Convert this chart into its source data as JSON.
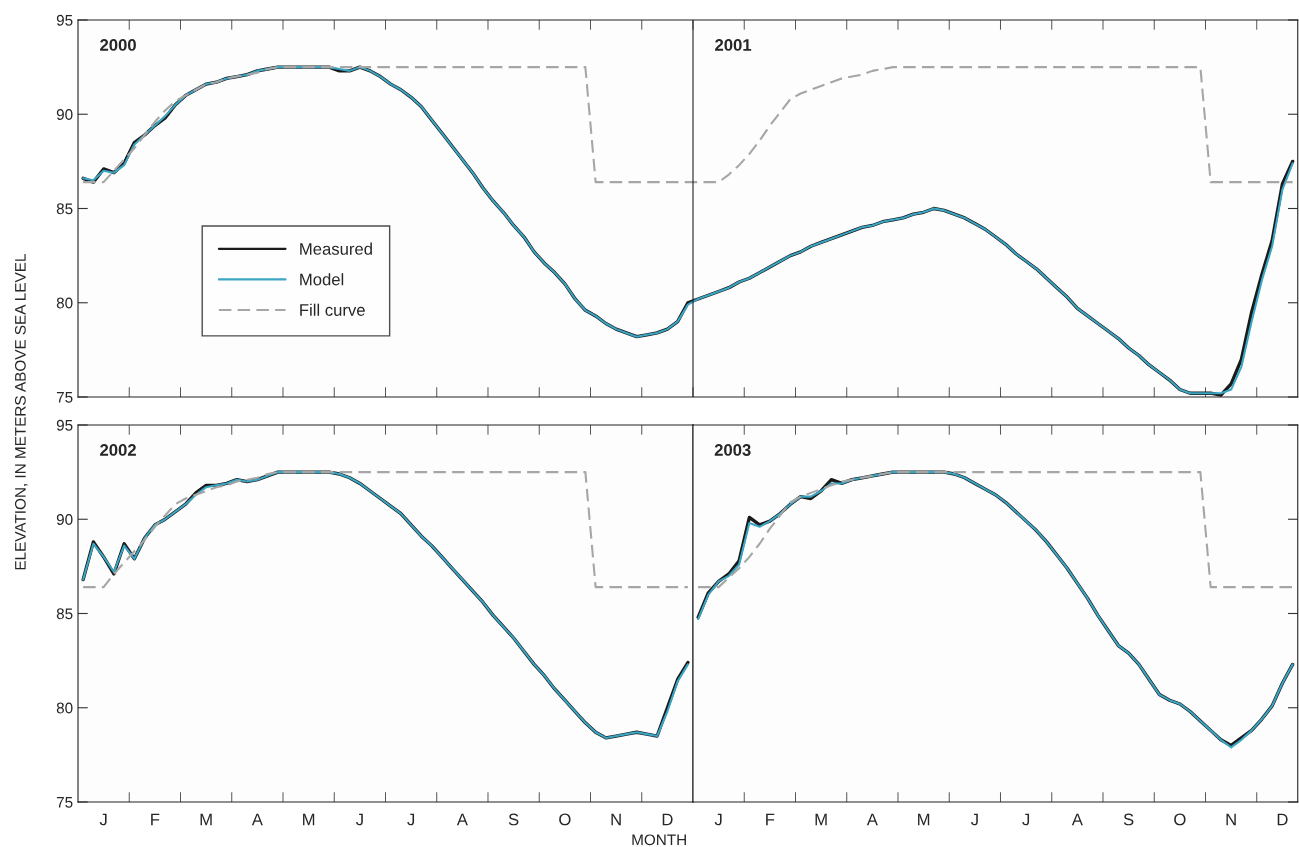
{
  "chart_data": [
    {
      "type": "line",
      "ylabel": "ELEVATION, IN METERS ABOVE SEA LEVEL",
      "annotations": [
        "2000",
        "2001"
      ],
      "categories": [
        null,
        null,
        null,
        null,
        null,
        null,
        null,
        null,
        null,
        null,
        null,
        null,
        null,
        null,
        null,
        null,
        null,
        null,
        null,
        null,
        null,
        null,
        null,
        null,
        null,
        null,
        null,
        null,
        null,
        null,
        null,
        null,
        null,
        null,
        null,
        null,
        null,
        null,
        null,
        null,
        null,
        null,
        null,
        null,
        null,
        null,
        null,
        null,
        null,
        null,
        null,
        null,
        null,
        null,
        null,
        null,
        null,
        null,
        null,
        null,
        null,
        null,
        null,
        null,
        null,
        null,
        null,
        null,
        null,
        null,
        null,
        null,
        null,
        null,
        null,
        null,
        null,
        null,
        null,
        null,
        null,
        null,
        null,
        null,
        null,
        null,
        null,
        null,
        null,
        null,
        null,
        null,
        null,
        null,
        null,
        null,
        null,
        null,
        null,
        null,
        null,
        null,
        null,
        null,
        null,
        null,
        null,
        null,
        null,
        null,
        null,
        null,
        null,
        null,
        null,
        null,
        null,
        null,
        null
      ],
      "ylim": [
        75,
        95
      ],
      "yticks": [
        75,
        80,
        85,
        90,
        95
      ],
      "tick_labels": "y",
      "grid": false,
      "legend": "lower left",
      "series": [
        {
          "name": "Measured",
          "color": "#1a1a1a",
          "values": [
            86.6,
            86.4,
            87.1,
            86.9,
            87.4,
            88.5,
            88.9,
            89.4,
            89.8,
            90.5,
            91.0,
            91.3,
            91.6,
            91.7,
            91.9,
            92.0,
            92.1,
            92.3,
            92.4,
            92.5,
            92.5,
            92.5,
            92.5,
            92.5,
            92.5,
            92.3,
            92.3,
            92.5,
            92.3,
            92.0,
            91.6,
            91.3,
            90.9,
            90.4,
            89.7,
            89.0,
            88.3,
            87.6,
            86.9,
            86.1,
            85.4,
            84.8,
            84.1,
            83.5,
            82.7,
            82.1,
            81.6,
            81.0,
            80.2,
            79.6,
            79.3,
            78.9,
            78.6,
            78.4,
            78.2,
            78.3,
            78.4,
            78.6,
            79.0,
            80.0,
            80.2,
            80.4,
            80.6,
            80.8,
            81.1,
            81.3,
            81.6,
            81.9,
            82.2,
            82.5,
            82.7,
            83.0,
            83.2,
            83.4,
            83.6,
            83.8,
            84.0,
            84.1,
            84.3,
            84.4,
            84.5,
            84.7,
            84.8,
            85.0,
            84.9,
            84.7,
            84.5,
            84.2,
            83.9,
            83.5,
            83.1,
            82.6,
            82.2,
            81.8,
            81.3,
            80.8,
            80.3,
            79.7,
            79.3,
            78.9,
            78.5,
            78.1,
            77.6,
            77.2,
            76.7,
            76.3,
            75.9,
            75.4,
            75.2,
            75.2,
            75.2,
            75.1,
            75.7,
            77.0,
            79.5,
            81.5,
            83.3,
            86.3,
            87.5
          ]
        },
        {
          "name": "Model",
          "color": "#3aa6c4",
          "values": [
            86.6,
            86.5,
            87.0,
            86.9,
            87.3,
            88.4,
            88.9,
            89.4,
            89.9,
            90.5,
            91.0,
            91.3,
            91.6,
            91.7,
            91.9,
            92.0,
            92.1,
            92.3,
            92.4,
            92.5,
            92.5,
            92.5,
            92.5,
            92.5,
            92.5,
            92.4,
            92.3,
            92.5,
            92.3,
            92.0,
            91.6,
            91.3,
            90.9,
            90.4,
            89.7,
            89.0,
            88.3,
            87.6,
            86.9,
            86.1,
            85.4,
            84.8,
            84.1,
            83.5,
            82.7,
            82.1,
            81.6,
            81.0,
            80.2,
            79.6,
            79.3,
            78.9,
            78.6,
            78.4,
            78.2,
            78.3,
            78.4,
            78.6,
            79.0,
            79.9,
            80.2,
            80.4,
            80.6,
            80.8,
            81.1,
            81.3,
            81.6,
            81.9,
            82.2,
            82.5,
            82.7,
            83.0,
            83.2,
            83.4,
            83.6,
            83.8,
            84.0,
            84.1,
            84.3,
            84.4,
            84.5,
            84.7,
            84.8,
            85.0,
            84.9,
            84.7,
            84.5,
            84.2,
            83.9,
            83.5,
            83.1,
            82.6,
            82.2,
            81.8,
            81.3,
            80.8,
            80.3,
            79.7,
            79.3,
            78.9,
            78.5,
            78.1,
            77.6,
            77.2,
            76.7,
            76.3,
            75.9,
            75.4,
            75.2,
            75.2,
            75.2,
            75.2,
            75.4,
            76.6,
            79.0,
            81.2,
            83.0,
            86.0,
            87.4
          ]
        },
        {
          "name": "Fill curve",
          "color": "#a6a6a6",
          "line_style": "dashed",
          "values": [
            86.4,
            86.4,
            86.4,
            87.0,
            87.6,
            88.2,
            88.9,
            89.6,
            90.2,
            90.7,
            91.0,
            91.3,
            91.6,
            91.7,
            91.9,
            92.0,
            92.1,
            92.2,
            92.4,
            92.5,
            92.5,
            92.5,
            92.5,
            92.5,
            92.5,
            92.5,
            92.5,
            92.5,
            92.5,
            92.5,
            92.5,
            92.5,
            92.5,
            92.5,
            92.5,
            92.5,
            92.5,
            92.5,
            92.5,
            92.5,
            92.5,
            92.5,
            92.5,
            92.5,
            92.5,
            92.5,
            92.5,
            92.5,
            92.5,
            92.5,
            86.4,
            86.4,
            86.4,
            86.4,
            86.4,
            86.4,
            86.4,
            86.4,
            86.4,
            86.4,
            86.4,
            86.4,
            86.4,
            86.8,
            87.3,
            87.9,
            88.6,
            89.4,
            90.1,
            90.8,
            91.1,
            91.3,
            91.5,
            91.7,
            91.9,
            92.0,
            92.1,
            92.3,
            92.4,
            92.5,
            92.5,
            92.5,
            92.5,
            92.5,
            92.5,
            92.5,
            92.5,
            92.5,
            92.5,
            92.5,
            92.5,
            92.5,
            92.5,
            92.5,
            92.5,
            92.5,
            92.5,
            92.5,
            92.5,
            92.5,
            92.5,
            92.5,
            92.5,
            92.5,
            92.5,
            92.5,
            92.5,
            92.5,
            92.5,
            92.5,
            86.4,
            86.4,
            86.4,
            86.4,
            86.4,
            86.4,
            86.4,
            86.4,
            86.4
          ]
        }
      ]
    },
    {
      "type": "line",
      "xlabel": "MONTH",
      "annotations": [
        "2002"
      ],
      "categories": [
        null,
        null,
        "J",
        null,
        null,
        null,
        null,
        "F",
        null,
        null,
        null,
        null,
        "M",
        null,
        null,
        null,
        null,
        "A",
        null,
        null,
        null,
        null,
        "M",
        null,
        null,
        null,
        null,
        "J",
        null,
        null,
        null,
        null,
        "J",
        null,
        null,
        null,
        null,
        "A",
        null,
        null,
        null,
        null,
        "S",
        null,
        null,
        null,
        null,
        "O",
        null,
        null,
        null,
        null,
        "N",
        null,
        null,
        null,
        null,
        "D",
        null,
        null
      ],
      "ylim": [
        75,
        95
      ],
      "yticks": [
        75,
        80,
        85,
        90,
        95
      ],
      "grid": false,
      "series": [
        {
          "color": "#1a1a1a",
          "values": [
            86.8,
            88.8,
            88.0,
            87.1,
            88.7,
            87.9,
            89.0,
            89.7,
            90.0,
            90.4,
            90.8,
            91.4,
            91.8,
            91.8,
            91.9,
            92.1,
            92.0,
            92.1,
            92.3,
            92.5,
            92.5,
            92.5,
            92.5,
            92.5,
            92.5,
            92.4,
            92.2,
            91.9,
            91.5,
            91.1,
            90.7,
            90.3,
            89.7,
            89.1,
            88.6,
            88.0,
            87.4,
            86.8,
            86.2,
            85.6,
            84.9,
            84.3,
            83.7,
            83.0,
            82.3,
            81.7,
            81.0,
            80.4,
            79.8,
            79.2,
            78.7,
            78.4,
            78.5,
            78.6,
            78.7,
            78.6,
            78.5,
            80.0,
            81.5,
            82.4
          ]
        },
        {
          "color": "#3aa6c4",
          "values": [
            86.8,
            88.7,
            88.0,
            87.2,
            88.6,
            87.9,
            89.0,
            89.7,
            90.0,
            90.4,
            90.8,
            91.3,
            91.7,
            91.8,
            91.9,
            92.1,
            92.0,
            92.1,
            92.3,
            92.5,
            92.5,
            92.5,
            92.5,
            92.5,
            92.5,
            92.4,
            92.2,
            91.9,
            91.5,
            91.1,
            90.7,
            90.3,
            89.7,
            89.1,
            88.6,
            88.0,
            87.4,
            86.8,
            86.2,
            85.6,
            84.9,
            84.3,
            83.7,
            83.0,
            82.3,
            81.7,
            81.0,
            80.4,
            79.8,
            79.2,
            78.7,
            78.4,
            78.5,
            78.6,
            78.7,
            78.6,
            78.5,
            79.8,
            81.4,
            82.3
          ]
        },
        {
          "color": "#a6a6a6",
          "line_style": "dashed",
          "values": [
            86.4,
            86.4,
            86.4,
            87.1,
            87.7,
            88.3,
            88.9,
            89.6,
            90.2,
            90.8,
            91.1,
            91.3,
            91.5,
            91.7,
            91.8,
            92.0,
            92.1,
            92.2,
            92.4,
            92.5,
            92.5,
            92.5,
            92.5,
            92.5,
            92.5,
            92.5,
            92.5,
            92.5,
            92.5,
            92.5,
            92.5,
            92.5,
            92.5,
            92.5,
            92.5,
            92.5,
            92.5,
            92.5,
            92.5,
            92.5,
            92.5,
            92.5,
            92.5,
            92.5,
            92.5,
            92.5,
            92.5,
            92.5,
            92.5,
            92.5,
            86.4,
            86.4,
            86.4,
            86.4,
            86.4,
            86.4,
            86.4,
            86.4,
            86.4,
            86.4
          ]
        }
      ]
    },
    {
      "type": "line",
      "annotations": [
        "2003"
      ],
      "categories": [
        null,
        null,
        "J",
        null,
        null,
        null,
        null,
        "F",
        null,
        null,
        null,
        null,
        "M",
        null,
        null,
        null,
        null,
        "A",
        null,
        null,
        null,
        null,
        "M",
        null,
        null,
        null,
        null,
        "J",
        null,
        null,
        null,
        null,
        "J",
        null,
        null,
        null,
        null,
        "A",
        null,
        null,
        null,
        null,
        "S",
        null,
        null,
        null,
        null,
        "O",
        null,
        null,
        null,
        null,
        "N",
        null,
        null,
        null,
        null,
        "D",
        null
      ],
      "ylim": [
        75,
        95
      ],
      "yticks": [
        75,
        80,
        85,
        90,
        95
      ],
      "tick_labels": "x",
      "grid": false,
      "series": [
        {
          "color": "#1a1a1a",
          "values": [
            84.8,
            86.1,
            86.7,
            87.1,
            87.8,
            90.1,
            89.7,
            89.9,
            90.3,
            90.8,
            91.2,
            91.1,
            91.5,
            92.1,
            91.9,
            92.1,
            92.2,
            92.3,
            92.4,
            92.5,
            92.5,
            92.5,
            92.5,
            92.5,
            92.5,
            92.4,
            92.2,
            91.9,
            91.6,
            91.3,
            90.9,
            90.4,
            89.9,
            89.4,
            88.8,
            88.1,
            87.4,
            86.6,
            85.8,
            84.9,
            84.1,
            83.3,
            82.9,
            82.3,
            81.5,
            80.7,
            80.4,
            80.2,
            79.8,
            79.3,
            78.8,
            78.3,
            78.0,
            78.4,
            78.8,
            79.4,
            80.1,
            81.3,
            82.3
          ]
        },
        {
          "color": "#3aa6c4",
          "values": [
            84.7,
            86.0,
            86.7,
            87.0,
            87.6,
            89.8,
            89.6,
            89.9,
            90.3,
            90.8,
            91.2,
            91.2,
            91.5,
            91.9,
            91.9,
            92.1,
            92.2,
            92.3,
            92.4,
            92.5,
            92.5,
            92.5,
            92.5,
            92.5,
            92.5,
            92.4,
            92.2,
            91.9,
            91.6,
            91.3,
            90.9,
            90.4,
            89.9,
            89.4,
            88.8,
            88.1,
            87.4,
            86.6,
            85.8,
            84.9,
            84.1,
            83.3,
            82.9,
            82.3,
            81.5,
            80.7,
            80.4,
            80.2,
            79.8,
            79.3,
            78.8,
            78.3,
            77.9,
            78.3,
            78.8,
            79.4,
            80.1,
            81.3,
            82.3
          ]
        },
        {
          "color": "#a6a6a6",
          "line_style": "dashed",
          "values": [
            86.4,
            86.4,
            86.4,
            86.9,
            87.4,
            88.0,
            88.7,
            89.5,
            90.2,
            90.9,
            91.2,
            91.4,
            91.6,
            91.8,
            92.0,
            92.1,
            92.2,
            92.3,
            92.4,
            92.5,
            92.5,
            92.5,
            92.5,
            92.5,
            92.5,
            92.5,
            92.5,
            92.5,
            92.5,
            92.5,
            92.5,
            92.5,
            92.5,
            92.5,
            92.5,
            92.5,
            92.5,
            92.5,
            92.5,
            92.5,
            92.5,
            92.5,
            92.5,
            92.5,
            92.5,
            92.5,
            92.5,
            92.5,
            92.5,
            92.5,
            86.4,
            86.4,
            86.4,
            86.4,
            86.4,
            86.4,
            86.4,
            86.4,
            86.4
          ]
        }
      ]
    }
  ]
}
